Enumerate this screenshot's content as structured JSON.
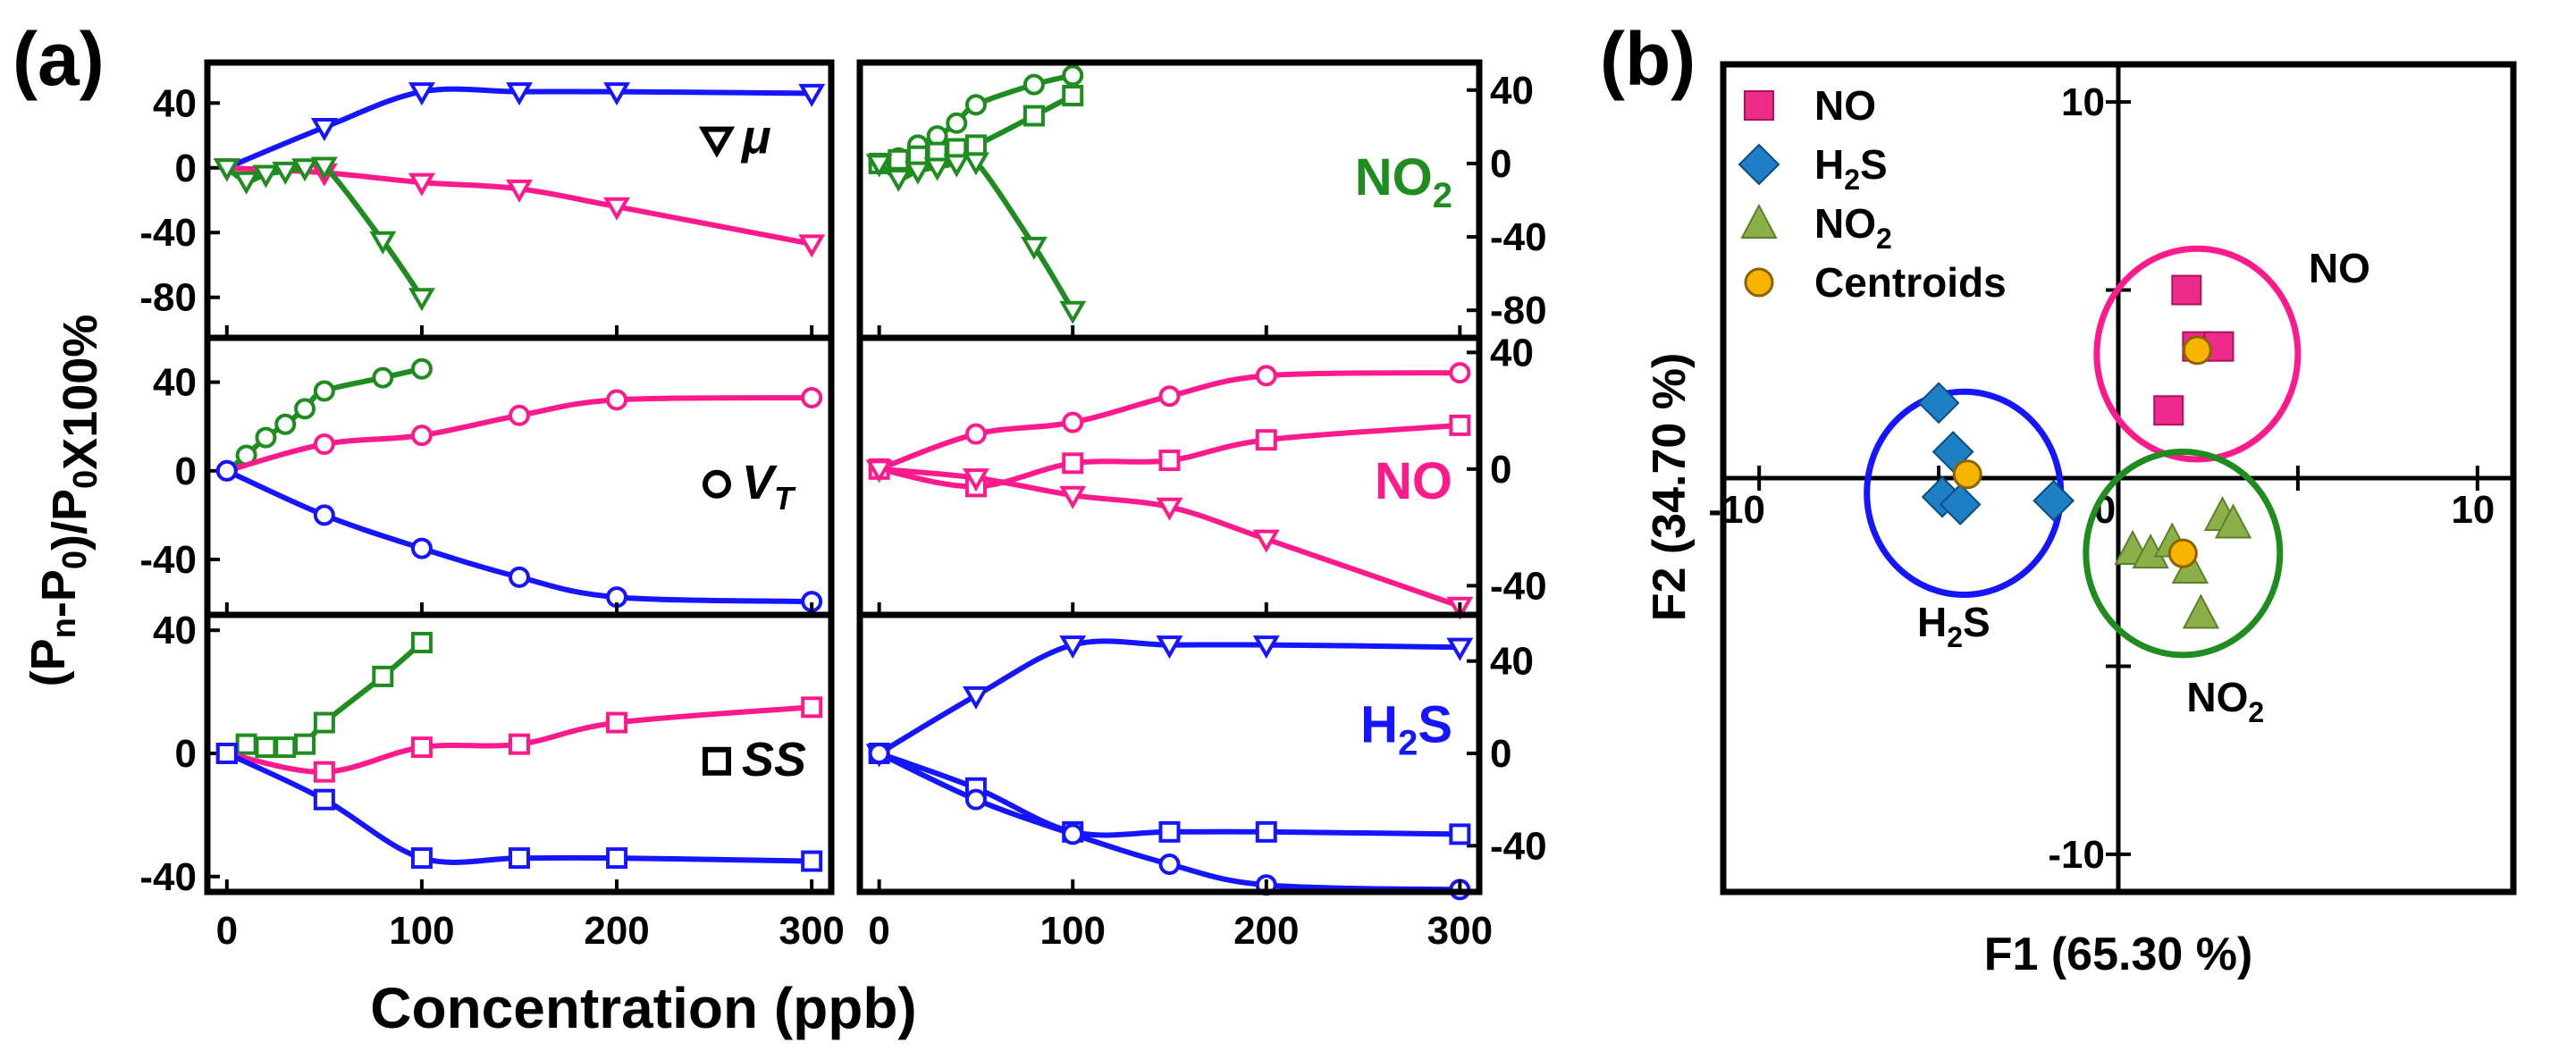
{
  "figure": {
    "panel_a_label": "(a)",
    "panel_b_label": "(b)"
  },
  "colors": {
    "NO": "#ff1a8c",
    "H2S": "#1515ff",
    "NO2": "#1f8c1f",
    "axis": "#000000"
  },
  "chart_data": [
    {
      "id": "panel-a",
      "type": "line",
      "title": "",
      "xlabel": "Concentration (ppb)",
      "ylabel": "(P_n-P_0)/P_0X100%",
      "xlim": [
        -10,
        310
      ],
      "xticks": [
        0,
        100,
        200,
        300
      ],
      "rows": [
        {
          "parameter": "μ",
          "marker": "triangle-down",
          "left": {
            "ylim": [
              -105,
              65
            ],
            "yticks": [
              40,
              0,
              -40,
              -80
            ],
            "series": [
              {
                "gas": "H2S",
                "x": [
                  0,
                  50,
                  100,
                  150,
                  200,
                  300
                ],
                "y": [
                  0,
                  25,
                  47,
                  47,
                  47,
                  46
                ]
              },
              {
                "gas": "NO",
                "x": [
                  0,
                  50,
                  100,
                  150,
                  200,
                  300
                ],
                "y": [
                  0,
                  -3,
                  -9,
                  -13,
                  -24,
                  -47
                ]
              },
              {
                "gas": "NO2",
                "x": [
                  0,
                  10,
                  20,
                  30,
                  40,
                  50,
                  80,
                  100
                ],
                "y": [
                  0,
                  -8,
                  -4,
                  -2,
                  0,
                  1,
                  -45,
                  -80
                ]
              }
            ]
          },
          "right": {
            "label": "NO2",
            "ylim": [
              -95,
              55
            ],
            "yticks": [
              40,
              0,
              -40,
              -80
            ],
            "series": [
              {
                "gas": "NO2",
                "marker": "circle",
                "x": [
                  0,
                  10,
                  20,
                  30,
                  40,
                  50,
                  80,
                  100
                ],
                "y": [
                  0,
                  3,
                  10,
                  15,
                  22,
                  32,
                  43,
                  48
                ]
              },
              {
                "gas": "NO2",
                "marker": "square",
                "x": [
                  0,
                  10,
                  20,
                  30,
                  40,
                  50,
                  80,
                  100
                ],
                "y": [
                  0,
                  2,
                  4,
                  6,
                  8,
                  10,
                  26,
                  37
                ]
              },
              {
                "gas": "NO2",
                "marker": "triangle-down",
                "x": [
                  0,
                  10,
                  20,
                  30,
                  40,
                  50,
                  80,
                  100
                ],
                "y": [
                  0,
                  -8,
                  -4,
                  -2,
                  0,
                  1,
                  -45,
                  -80
                ]
              }
            ]
          }
        },
        {
          "parameter": "V_T",
          "marker": "circle",
          "left": {
            "ylim": [
              -65,
              60
            ],
            "yticks": [
              40,
              0,
              -40
            ],
            "series": [
              {
                "gas": "NO2",
                "x": [
                  0,
                  10,
                  20,
                  30,
                  40,
                  50,
                  80,
                  100
                ],
                "y": [
                  0,
                  7,
                  15,
                  21,
                  28,
                  36,
                  42,
                  46
                ]
              },
              {
                "gas": "NO",
                "x": [
                  0,
                  50,
                  100,
                  150,
                  200,
                  300
                ],
                "y": [
                  0,
                  12,
                  16,
                  25,
                  32,
                  33
                ]
              },
              {
                "gas": "H2S",
                "x": [
                  0,
                  50,
                  100,
                  150,
                  200,
                  300
                ],
                "y": [
                  0,
                  -20,
                  -35,
                  -48,
                  -57,
                  -59
                ]
              }
            ]
          },
          "right": {
            "label": "NO",
            "ylim": [
              -50,
              45
            ],
            "yticks": [
              40,
              0,
              -40
            ],
            "series": [
              {
                "gas": "NO",
                "marker": "circle",
                "x": [
                  0,
                  50,
                  100,
                  150,
                  200,
                  300
                ],
                "y": [
                  0,
                  12,
                  16,
                  25,
                  32,
                  33
                ]
              },
              {
                "gas": "NO",
                "marker": "square",
                "x": [
                  0,
                  50,
                  100,
                  150,
                  200,
                  300
                ],
                "y": [
                  0,
                  -6,
                  2,
                  3,
                  10,
                  15
                ]
              },
              {
                "gas": "NO",
                "marker": "triangle-down",
                "x": [
                  0,
                  50,
                  100,
                  150,
                  200,
                  300
                ],
                "y": [
                  0,
                  -3,
                  -9,
                  -13,
                  -24,
                  -47
                ]
              }
            ]
          }
        },
        {
          "parameter": "SS",
          "marker": "square",
          "left": {
            "ylim": [
              -45,
              45
            ],
            "yticks": [
              40,
              0,
              -40
            ],
            "series": [
              {
                "gas": "NO2",
                "x": [
                  0,
                  10,
                  20,
                  30,
                  40,
                  50,
                  80,
                  100
                ],
                "y": [
                  0,
                  3,
                  2,
                  2,
                  3,
                  10,
                  25,
                  36
                ]
              },
              {
                "gas": "NO",
                "x": [
                  0,
                  50,
                  100,
                  150,
                  200,
                  300
                ],
                "y": [
                  0,
                  -6,
                  2,
                  3,
                  10,
                  15
                ]
              },
              {
                "gas": "H2S",
                "x": [
                  0,
                  50,
                  100,
                  150,
                  200,
                  300
                ],
                "y": [
                  0,
                  -15,
                  -34,
                  -34,
                  -34,
                  -35
                ]
              }
            ]
          },
          "right": {
            "label": "H2S",
            "ylim": [
              -60,
              60
            ],
            "yticks": [
              40,
              0,
              -40
            ],
            "series": [
              {
                "gas": "H2S",
                "marker": "triangle-down",
                "x": [
                  0,
                  50,
                  100,
                  150,
                  200,
                  300
                ],
                "y": [
                  0,
                  25,
                  47,
                  47,
                  47,
                  46
                ]
              },
              {
                "gas": "H2S",
                "marker": "square",
                "x": [
                  0,
                  50,
                  100,
                  150,
                  200,
                  300
                ],
                "y": [
                  0,
                  -15,
                  -34,
                  -34,
                  -34,
                  -35
                ]
              },
              {
                "gas": "H2S",
                "marker": "circle",
                "x": [
                  0,
                  50,
                  100,
                  150,
                  200,
                  300
                ],
                "y": [
                  0,
                  -20,
                  -35,
                  -48,
                  -57,
                  -59
                ]
              }
            ]
          }
        }
      ]
    },
    {
      "id": "panel-b",
      "type": "scatter",
      "xlabel": "F1 (65.30 %)",
      "ylabel": "F2 (34.70 %)",
      "xlim": [
        -11,
        11
      ],
      "ylim": [
        -11,
        11
      ],
      "tick_labels": {
        "x_left": "-10",
        "x_zero": "0",
        "x_right": "10",
        "y_top": "10",
        "y_bottom": "-10"
      },
      "legend": [
        {
          "key": "NO",
          "text": "NO",
          "marker": "square"
        },
        {
          "key": "H2S",
          "text": "H",
          "sub": "2",
          "text2": "S",
          "marker": "diamond"
        },
        {
          "key": "NO2",
          "text": "NO",
          "sub": "2",
          "text2": "",
          "marker": "triangle"
        },
        {
          "key": "centroid",
          "text": "Centroids",
          "marker": "circle"
        }
      ],
      "series": [
        {
          "gas": "NO",
          "marker": "square",
          "points": [
            [
              1.9,
              5.0
            ],
            [
              2.2,
              3.5
            ],
            [
              2.8,
              3.5
            ],
            [
              1.4,
              1.8
            ]
          ]
        },
        {
          "gas": "H2S",
          "marker": "diamond",
          "points": [
            [
              -5.0,
              2.0
            ],
            [
              -4.6,
              0.7
            ],
            [
              -4.9,
              -0.5
            ],
            [
              -4.4,
              -0.7
            ],
            [
              -1.8,
              -0.6
            ]
          ]
        },
        {
          "gas": "NO2",
          "marker": "triangle",
          "points": [
            [
              0.4,
              -1.9
            ],
            [
              0.9,
              -2.0
            ],
            [
              1.5,
              -1.7
            ],
            [
              2.0,
              -2.4
            ],
            [
              2.9,
              -1.0
            ],
            [
              3.2,
              -1.2
            ],
            [
              2.3,
              -3.6
            ]
          ]
        }
      ],
      "centroids": [
        {
          "gas": "NO",
          "x": 2.2,
          "y": 3.4
        },
        {
          "gas": "H2S",
          "x": -4.2,
          "y": 0.1
        },
        {
          "gas": "NO2",
          "x": 1.8,
          "y": -2.0
        }
      ],
      "clusters": [
        {
          "gas": "NO",
          "cx": 2.2,
          "cy": 3.3,
          "r": 2.8,
          "label": "NO",
          "label_sub": ""
        },
        {
          "gas": "H2S",
          "cx": -4.3,
          "cy": -0.4,
          "r": 2.7,
          "label": "H",
          "label_sub": "2",
          "label_tail": "S"
        },
        {
          "gas": "NO2",
          "cx": 1.8,
          "cy": -2.0,
          "r": 2.7,
          "label": "NO",
          "label_sub": "2",
          "label_tail": ""
        }
      ]
    }
  ]
}
